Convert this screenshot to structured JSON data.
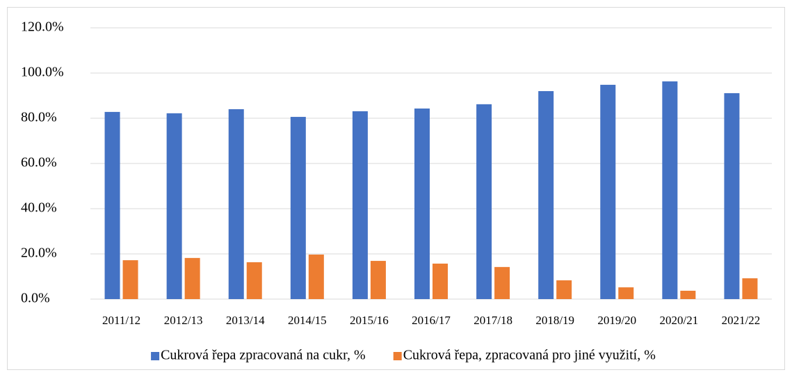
{
  "chart_data": {
    "type": "bar",
    "categories": [
      "2011/12",
      "2012/13",
      "2013/14",
      "2014/15",
      "2015/16",
      "2016/17",
      "2017/18",
      "2018/19",
      "2019/20",
      "2020/21",
      "2021/22"
    ],
    "series": [
      {
        "name": "Cukrová řepa zpracovaná na cukr, %",
        "color": "#4472c4",
        "values": [
          82.8,
          82.2,
          84.0,
          80.6,
          83.1,
          84.3,
          86.2,
          92.0,
          94.8,
          96.3,
          91.1
        ]
      },
      {
        "name": "Cukrová řepa, zpracovaná pro jiné využití, %",
        "color": "#ed7d31",
        "values": [
          17.2,
          18.2,
          16.3,
          19.7,
          16.9,
          15.7,
          14.2,
          8.3,
          5.2,
          3.7,
          9.2
        ]
      }
    ],
    "ylim": [
      0,
      120
    ],
    "yticks": [
      {
        "value": 0,
        "label": "0.0%"
      },
      {
        "value": 20,
        "label": "20.0%"
      },
      {
        "value": 40,
        "label": "40.0%"
      },
      {
        "value": 60,
        "label": "60.0%"
      },
      {
        "value": 80,
        "label": "80.0%"
      },
      {
        "value": 100,
        "label": "100.0%"
      },
      {
        "value": 120,
        "label": "120.0%"
      }
    ],
    "grid": true,
    "legend": "bottom"
  }
}
